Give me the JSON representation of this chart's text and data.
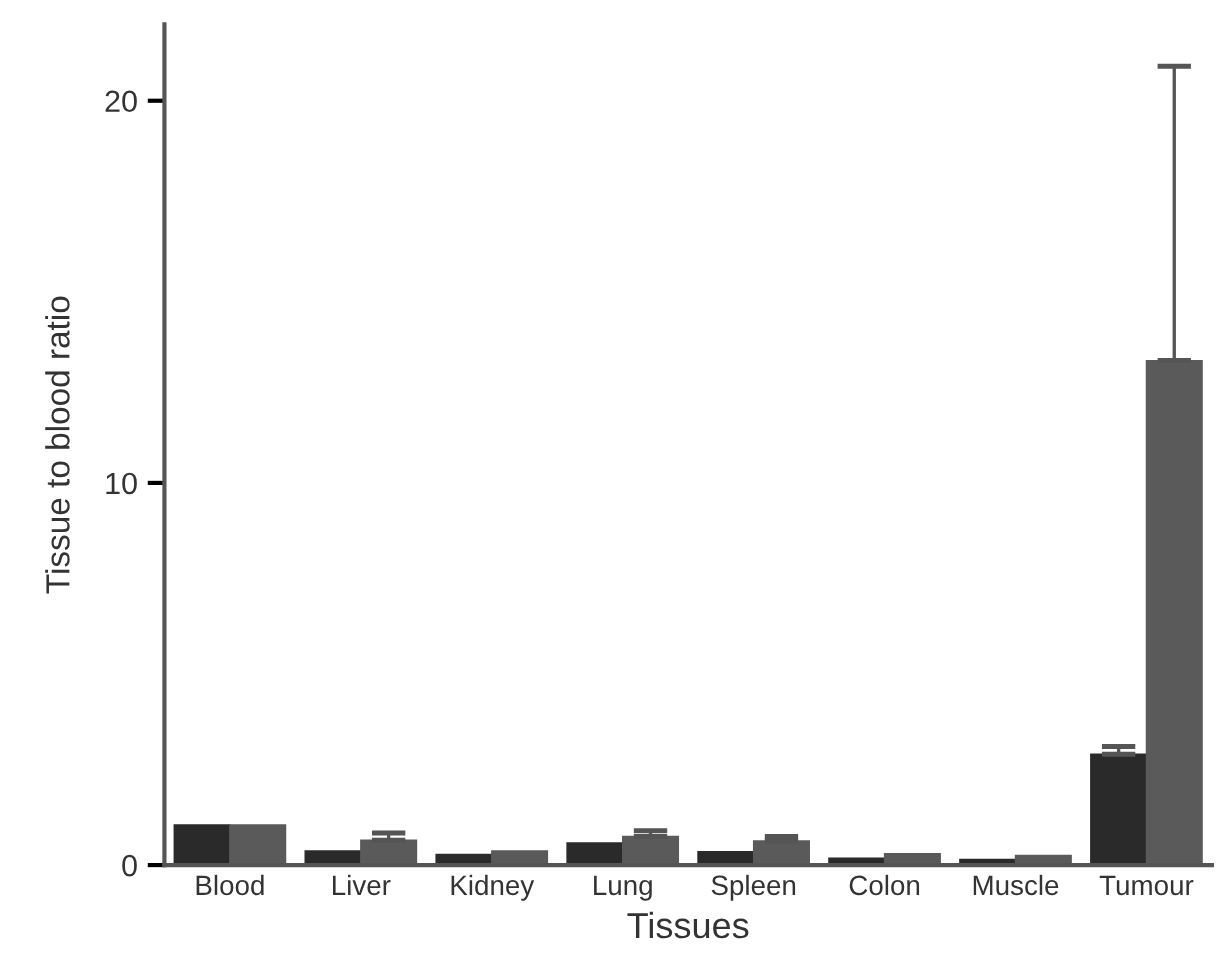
{
  "chart_data": {
    "type": "bar",
    "xlabel": "Tissues",
    "ylabel": "Tissue to blood ratio",
    "categories": [
      "Blood",
      "Liver",
      "Kidney",
      "Lung",
      "Spleen",
      "Colon",
      "Muscle",
      "Tumour"
    ],
    "series": [
      {
        "color": "#2a2a2a",
        "values": [
          1.05,
          0.37,
          0.28,
          0.58,
          0.35,
          0.18,
          0.15,
          2.9
        ],
        "errors": [
          null,
          null,
          null,
          null,
          null,
          null,
          null,
          [
            2.9,
            3.1
          ]
        ]
      },
      {
        "color": "#5a5a5a",
        "values": [
          1.05,
          0.65,
          0.37,
          0.75,
          0.63,
          0.3,
          0.25,
          13.2
        ],
        "errors": [
          null,
          [
            0.65,
            0.84
          ],
          null,
          [
            0.75,
            0.9
          ],
          [
            0.63,
            0.75
          ],
          null,
          null,
          [
            13.2,
            20.9
          ]
        ]
      }
    ],
    "ylim": [
      0,
      22
    ],
    "yticks": [
      0,
      10,
      20
    ],
    "grid": false,
    "legend": false
  }
}
